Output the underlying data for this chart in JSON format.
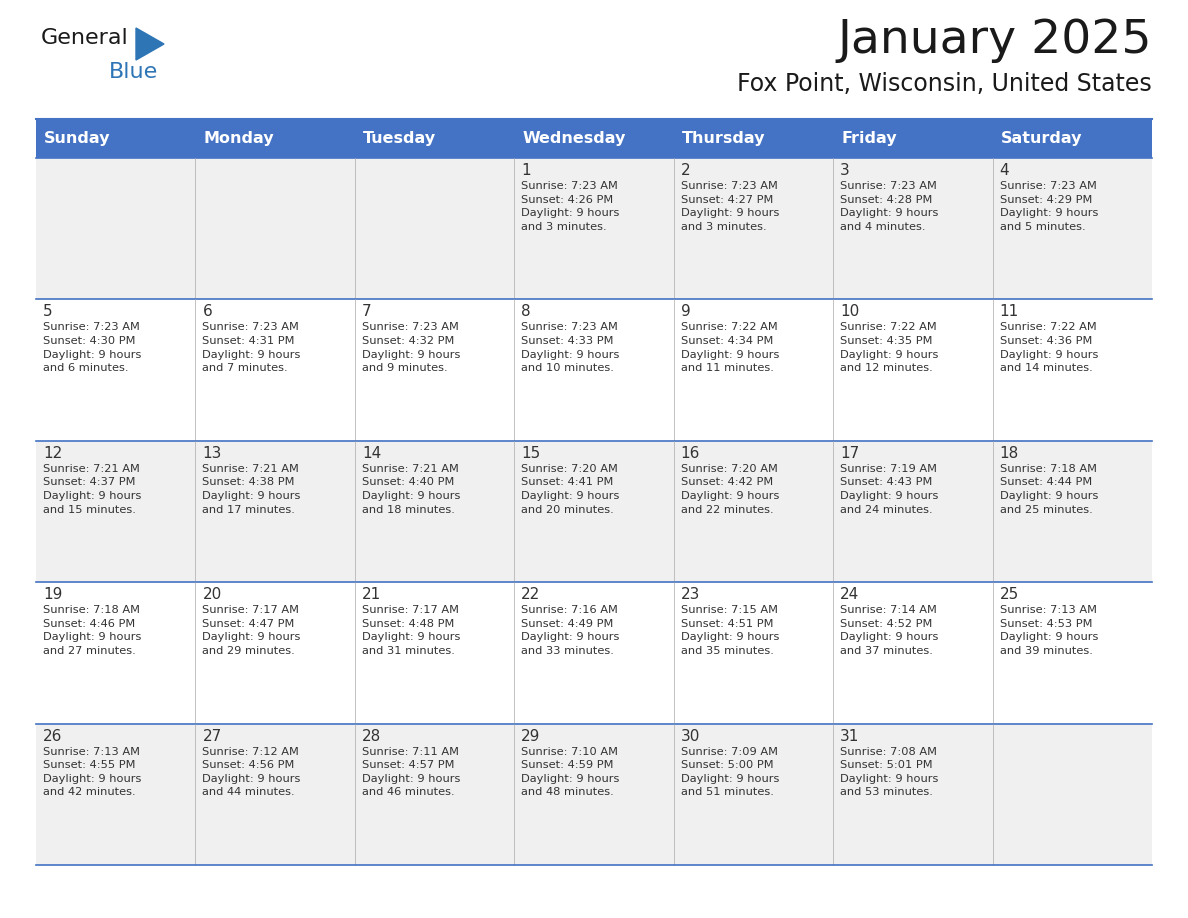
{
  "title": "January 2025",
  "subtitle": "Fox Point, Wisconsin, United States",
  "header_bg_color": "#4472C4",
  "header_text_color": "#FFFFFF",
  "row_bg_even": "#F0F0F0",
  "row_bg_odd": "#FFFFFF",
  "cell_border_color": "#4472C4",
  "day_names": [
    "Sunday",
    "Monday",
    "Tuesday",
    "Wednesday",
    "Thursday",
    "Friday",
    "Saturday"
  ],
  "title_color": "#1a1a1a",
  "subtitle_color": "#1a1a1a",
  "logo_general_color": "#1a1a1a",
  "logo_blue_color": "#2E75B6",
  "text_color": "#333333",
  "fig_width": 11.88,
  "fig_height": 9.18,
  "dpi": 100,
  "calendar": [
    [
      {
        "day": "",
        "text": ""
      },
      {
        "day": "",
        "text": ""
      },
      {
        "day": "",
        "text": ""
      },
      {
        "day": "1",
        "text": "Sunrise: 7:23 AM\nSunset: 4:26 PM\nDaylight: 9 hours\nand 3 minutes."
      },
      {
        "day": "2",
        "text": "Sunrise: 7:23 AM\nSunset: 4:27 PM\nDaylight: 9 hours\nand 3 minutes."
      },
      {
        "day": "3",
        "text": "Sunrise: 7:23 AM\nSunset: 4:28 PM\nDaylight: 9 hours\nand 4 minutes."
      },
      {
        "day": "4",
        "text": "Sunrise: 7:23 AM\nSunset: 4:29 PM\nDaylight: 9 hours\nand 5 minutes."
      }
    ],
    [
      {
        "day": "5",
        "text": "Sunrise: 7:23 AM\nSunset: 4:30 PM\nDaylight: 9 hours\nand 6 minutes."
      },
      {
        "day": "6",
        "text": "Sunrise: 7:23 AM\nSunset: 4:31 PM\nDaylight: 9 hours\nand 7 minutes."
      },
      {
        "day": "7",
        "text": "Sunrise: 7:23 AM\nSunset: 4:32 PM\nDaylight: 9 hours\nand 9 minutes."
      },
      {
        "day": "8",
        "text": "Sunrise: 7:23 AM\nSunset: 4:33 PM\nDaylight: 9 hours\nand 10 minutes."
      },
      {
        "day": "9",
        "text": "Sunrise: 7:22 AM\nSunset: 4:34 PM\nDaylight: 9 hours\nand 11 minutes."
      },
      {
        "day": "10",
        "text": "Sunrise: 7:22 AM\nSunset: 4:35 PM\nDaylight: 9 hours\nand 12 minutes."
      },
      {
        "day": "11",
        "text": "Sunrise: 7:22 AM\nSunset: 4:36 PM\nDaylight: 9 hours\nand 14 minutes."
      }
    ],
    [
      {
        "day": "12",
        "text": "Sunrise: 7:21 AM\nSunset: 4:37 PM\nDaylight: 9 hours\nand 15 minutes."
      },
      {
        "day": "13",
        "text": "Sunrise: 7:21 AM\nSunset: 4:38 PM\nDaylight: 9 hours\nand 17 minutes."
      },
      {
        "day": "14",
        "text": "Sunrise: 7:21 AM\nSunset: 4:40 PM\nDaylight: 9 hours\nand 18 minutes."
      },
      {
        "day": "15",
        "text": "Sunrise: 7:20 AM\nSunset: 4:41 PM\nDaylight: 9 hours\nand 20 minutes."
      },
      {
        "day": "16",
        "text": "Sunrise: 7:20 AM\nSunset: 4:42 PM\nDaylight: 9 hours\nand 22 minutes."
      },
      {
        "day": "17",
        "text": "Sunrise: 7:19 AM\nSunset: 4:43 PM\nDaylight: 9 hours\nand 24 minutes."
      },
      {
        "day": "18",
        "text": "Sunrise: 7:18 AM\nSunset: 4:44 PM\nDaylight: 9 hours\nand 25 minutes."
      }
    ],
    [
      {
        "day": "19",
        "text": "Sunrise: 7:18 AM\nSunset: 4:46 PM\nDaylight: 9 hours\nand 27 minutes."
      },
      {
        "day": "20",
        "text": "Sunrise: 7:17 AM\nSunset: 4:47 PM\nDaylight: 9 hours\nand 29 minutes."
      },
      {
        "day": "21",
        "text": "Sunrise: 7:17 AM\nSunset: 4:48 PM\nDaylight: 9 hours\nand 31 minutes."
      },
      {
        "day": "22",
        "text": "Sunrise: 7:16 AM\nSunset: 4:49 PM\nDaylight: 9 hours\nand 33 minutes."
      },
      {
        "day": "23",
        "text": "Sunrise: 7:15 AM\nSunset: 4:51 PM\nDaylight: 9 hours\nand 35 minutes."
      },
      {
        "day": "24",
        "text": "Sunrise: 7:14 AM\nSunset: 4:52 PM\nDaylight: 9 hours\nand 37 minutes."
      },
      {
        "day": "25",
        "text": "Sunrise: 7:13 AM\nSunset: 4:53 PM\nDaylight: 9 hours\nand 39 minutes."
      }
    ],
    [
      {
        "day": "26",
        "text": "Sunrise: 7:13 AM\nSunset: 4:55 PM\nDaylight: 9 hours\nand 42 minutes."
      },
      {
        "day": "27",
        "text": "Sunrise: 7:12 AM\nSunset: 4:56 PM\nDaylight: 9 hours\nand 44 minutes."
      },
      {
        "day": "28",
        "text": "Sunrise: 7:11 AM\nSunset: 4:57 PM\nDaylight: 9 hours\nand 46 minutes."
      },
      {
        "day": "29",
        "text": "Sunrise: 7:10 AM\nSunset: 4:59 PM\nDaylight: 9 hours\nand 48 minutes."
      },
      {
        "day": "30",
        "text": "Sunrise: 7:09 AM\nSunset: 5:00 PM\nDaylight: 9 hours\nand 51 minutes."
      },
      {
        "day": "31",
        "text": "Sunrise: 7:08 AM\nSunset: 5:01 PM\nDaylight: 9 hours\nand 53 minutes."
      },
      {
        "day": "",
        "text": ""
      }
    ]
  ]
}
